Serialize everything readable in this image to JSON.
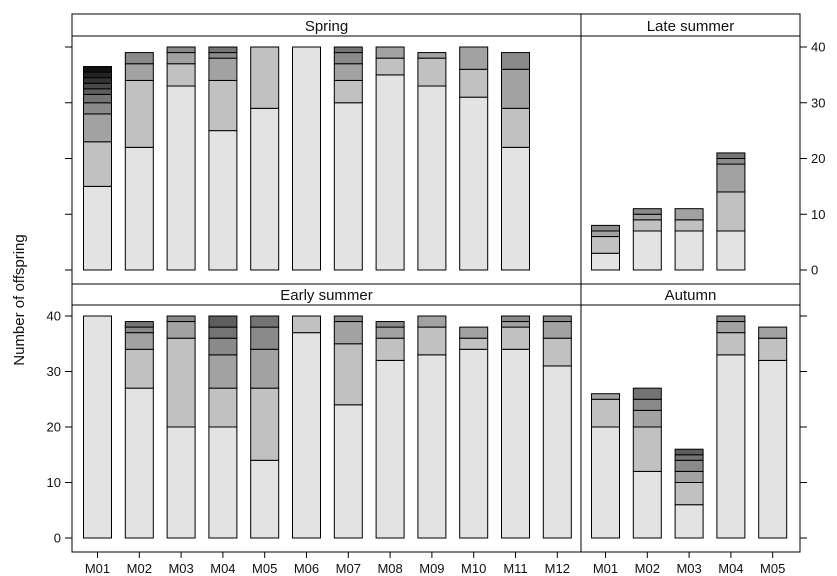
{
  "chart_data": {
    "type": "bar",
    "stacked": true,
    "ylabel": "Number of offspring",
    "ylim": [
      0,
      40
    ],
    "yticks": [
      0,
      10,
      20,
      30,
      40
    ],
    "segment_colors": [
      "#e3e3e3",
      "#c1c1c1",
      "#a2a2a2",
      "#8a8a8a",
      "#747474",
      "#5e5e5e",
      "#484848",
      "#343434",
      "#222222",
      "#111111"
    ],
    "panels": [
      {
        "id": "spring",
        "title": "Spring",
        "categories": [
          "M01",
          "M02",
          "M03",
          "M04",
          "M05",
          "M06",
          "M07",
          "M08",
          "M09",
          "M10",
          "M11",
          "M12"
        ],
        "stacks": [
          [
            15,
            8,
            5,
            2,
            1.5,
            1,
            1,
            1,
            1,
            1
          ],
          [
            22,
            12,
            3,
            2
          ],
          [
            33,
            4,
            2,
            1
          ],
          [
            25,
            9,
            4,
            1,
            1
          ],
          [
            29,
            11
          ],
          [
            40
          ],
          [
            30,
            4,
            3,
            2,
            1
          ],
          [
            35,
            3,
            2
          ],
          [
            33,
            5,
            1
          ],
          [
            31,
            5,
            4
          ],
          [
            22,
            7,
            7,
            3
          ],
          []
        ]
      },
      {
        "id": "late-summer",
        "title": "Late summer",
        "categories": [
          "M01",
          "M02",
          "M03",
          "M04",
          "M05"
        ],
        "stacks": [
          [
            3,
            3,
            1,
            1
          ],
          [
            7,
            2,
            1,
            1
          ],
          [
            7,
            2,
            2
          ],
          [
            7,
            7,
            5,
            1,
            1
          ],
          []
        ]
      },
      {
        "id": "early-summer",
        "title": "Early summer",
        "categories": [
          "M01",
          "M02",
          "M03",
          "M04",
          "M05",
          "M06",
          "M07",
          "M08",
          "M09",
          "M10",
          "M11",
          "M12"
        ],
        "stacks": [
          [
            40
          ],
          [
            27,
            7,
            3,
            1,
            1
          ],
          [
            20,
            16,
            3,
            1
          ],
          [
            20,
            7,
            6,
            3,
            2,
            2
          ],
          [
            14,
            13,
            7,
            4,
            2
          ],
          [
            37,
            3
          ],
          [
            24,
            11,
            4,
            1
          ],
          [
            32,
            4,
            2,
            1
          ],
          [
            33,
            5,
            2
          ],
          [
            34,
            2,
            2
          ],
          [
            34,
            4,
            1,
            1
          ],
          [
            31,
            5,
            3,
            1
          ]
        ]
      },
      {
        "id": "autumn",
        "title": "Autumn",
        "categories": [
          "M01",
          "M02",
          "M03",
          "M04",
          "M05"
        ],
        "stacks": [
          [
            20,
            5,
            1
          ],
          [
            12,
            8,
            3,
            2,
            2
          ],
          [
            6,
            4,
            2,
            2,
            1,
            1
          ],
          [
            33,
            4,
            2,
            1
          ],
          [
            32,
            4,
            2
          ]
        ]
      }
    ]
  }
}
